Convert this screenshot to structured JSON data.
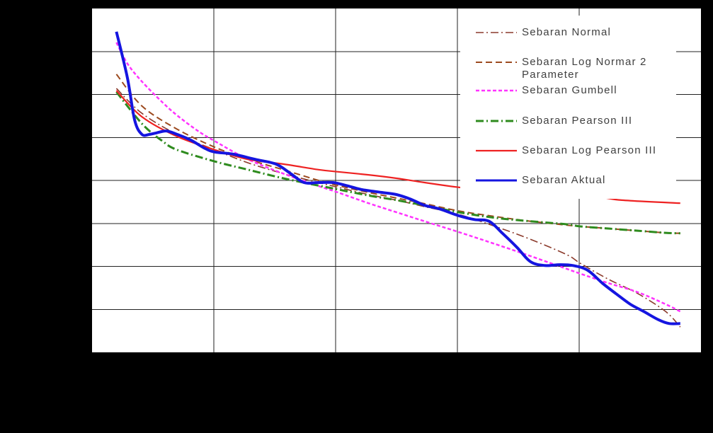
{
  "chart_data": {
    "type": "line",
    "title": "",
    "xlabel": "",
    "ylabel": "",
    "xlim": [
      0,
      5
    ],
    "ylim": [
      0,
      8
    ],
    "grid": true,
    "legend_position": "top-right",
    "background": "#000000",
    "plot_background": "#ffffff",
    "series": [
      {
        "name": "Sebaran Normal",
        "color": "#8b3a2b",
        "style": "dash-dot",
        "x": [
          0.2,
          0.41,
          0.7,
          1.01,
          1.28,
          1.57,
          1.86,
          2.02,
          2.27,
          2.5,
          2.73,
          3.01,
          3.31,
          3.6,
          3.9,
          4.01,
          4.24,
          4.48,
          4.71,
          4.83
        ],
        "y": [
          6.14,
          5.56,
          5.07,
          4.71,
          4.41,
          4.16,
          3.95,
          3.84,
          3.67,
          3.54,
          3.39,
          3.21,
          2.93,
          2.63,
          2.27,
          2.07,
          1.7,
          1.37,
          0.95,
          0.59
        ]
      },
      {
        "name": "Sebaran Log Normar 2 Parameter",
        "color": "#9c4a1f",
        "style": "dashed",
        "x": [
          0.2,
          0.41,
          0.7,
          1.01,
          1.28,
          1.57,
          1.86,
          2.02,
          2.27,
          2.5,
          2.73,
          3.01,
          3.31,
          3.6,
          3.9,
          4.01,
          4.24,
          4.48,
          4.71,
          4.83
        ],
        "y": [
          6.47,
          5.73,
          5.19,
          4.77,
          4.49,
          4.25,
          4.0,
          3.88,
          3.72,
          3.59,
          3.46,
          3.29,
          3.16,
          3.05,
          2.96,
          2.93,
          2.88,
          2.83,
          2.78,
          2.77
        ]
      },
      {
        "name": "Sebaran Gumbell",
        "color": "#ff33ff",
        "style": "dotted",
        "x": [
          0.2,
          0.29,
          0.41,
          0.58,
          0.7,
          0.87,
          1.01,
          1.28,
          1.57,
          1.86,
          2.02,
          2.27,
          2.5,
          2.73,
          3.01,
          3.31,
          3.6,
          3.9,
          4.01,
          4.24,
          4.48,
          4.71,
          4.83
        ],
        "y": [
          7.21,
          6.72,
          6.3,
          5.81,
          5.51,
          5.15,
          4.91,
          4.49,
          4.16,
          3.87,
          3.72,
          3.47,
          3.26,
          3.05,
          2.8,
          2.52,
          2.24,
          1.94,
          1.83,
          1.61,
          1.4,
          1.12,
          0.95
        ]
      },
      {
        "name": "Sebaran Pearson III",
        "color": "#2e8b1e",
        "style": "dash-dot",
        "x": [
          0.2,
          0.41,
          0.58,
          0.7,
          1.01,
          1.28,
          1.57,
          1.86,
          2.02,
          2.27,
          2.5,
          2.73,
          3.01,
          3.31,
          3.6,
          3.9,
          4.01,
          4.24,
          4.48,
          4.71,
          4.83
        ],
        "y": [
          6.06,
          5.32,
          4.91,
          4.71,
          4.44,
          4.25,
          4.05,
          3.88,
          3.79,
          3.65,
          3.54,
          3.42,
          3.26,
          3.13,
          3.05,
          2.98,
          2.93,
          2.88,
          2.83,
          2.78,
          2.77
        ]
      },
      {
        "name": "Sebaran Log Pearson III",
        "color": "#ee2222",
        "style": "solid",
        "x": [
          0.2,
          0.41,
          0.7,
          1.01,
          1.28,
          1.57,
          1.86,
          2.02,
          2.27,
          2.5,
          2.73,
          3.01,
          3.31,
          3.6,
          3.9,
          4.19,
          4.35,
          4.83
        ],
        "y": [
          6.09,
          5.48,
          5.02,
          4.71,
          4.49,
          4.38,
          4.25,
          4.2,
          4.13,
          4.05,
          3.95,
          3.84,
          3.75,
          3.7,
          3.65,
          3.6,
          3.54,
          3.47
        ]
      },
      {
        "name": "Sebaran Aktual",
        "color": "#1515e0",
        "style": "solid",
        "x": [
          0.2,
          0.29,
          0.35,
          0.41,
          0.47,
          0.52,
          0.61,
          0.7,
          0.81,
          0.93,
          1.01,
          1.16,
          1.34,
          1.51,
          1.63,
          1.74,
          1.86,
          1.98,
          2.09,
          2.21,
          2.38,
          2.5,
          2.62,
          2.73,
          2.85,
          3.01,
          3.14,
          3.26,
          3.37,
          3.49,
          3.6,
          3.72,
          3.84,
          3.95,
          4.07,
          4.19,
          4.3,
          4.42,
          4.53,
          4.65,
          4.74,
          4.83
        ],
        "y": [
          7.46,
          6.39,
          5.4,
          5.07,
          5.07,
          5.1,
          5.15,
          5.07,
          4.94,
          4.74,
          4.66,
          4.61,
          4.49,
          4.38,
          4.16,
          3.95,
          3.95,
          3.95,
          3.88,
          3.79,
          3.72,
          3.67,
          3.56,
          3.42,
          3.34,
          3.18,
          3.09,
          3.05,
          2.77,
          2.44,
          2.11,
          2.02,
          2.04,
          2.02,
          1.91,
          1.61,
          1.37,
          1.12,
          0.95,
          0.76,
          0.67,
          0.67
        ]
      }
    ]
  }
}
